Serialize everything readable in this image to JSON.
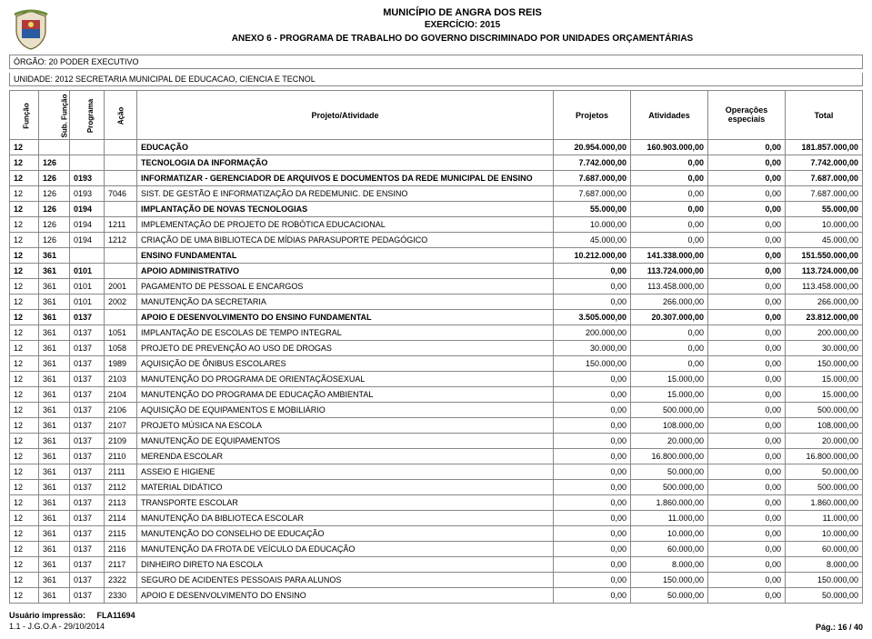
{
  "header": {
    "municipality": "MUNICÍPIO DE ANGRA DOS REIS",
    "exercise": "EXERCÍCIO: 2015",
    "anexo": "ANEXO 6 - PROGRAMA DE TRABALHO DO GOVERNO DISCRIMINADO POR UNIDADES ORÇAMENTÁRIAS",
    "orgao": "ÓRGÃO: 20 PODER EXECUTIVO",
    "unidade": "UNIDADE: 2012 SECRETARIA MUNICIPAL DE EDUCACAO, CIENCIA E TECNOL"
  },
  "columns": {
    "funcao": "Função",
    "subfuncao": "Sub. Função",
    "programa": "Programa",
    "acao": "Ação",
    "projeto_atividade": "Projeto/Atividade",
    "projetos": "Projetos",
    "atividades": "Atividades",
    "operacoes": "Operações especiais",
    "total": "Total"
  },
  "rows": [
    {
      "bold": true,
      "f": "12",
      "s": "",
      "p": "",
      "a": "",
      "desc": "EDUCAÇÃO",
      "v1": "20.954.000,00",
      "v2": "160.903.000,00",
      "v3": "0,00",
      "v4": "181.857.000,00"
    },
    {
      "bold": true,
      "f": "12",
      "s": "126",
      "p": "",
      "a": "",
      "desc": "TECNOLOGIA DA INFORMAÇÃO",
      "v1": "7.742.000,00",
      "v2": "0,00",
      "v3": "0,00",
      "v4": "7.742.000,00"
    },
    {
      "bold": true,
      "f": "12",
      "s": "126",
      "p": "0193",
      "a": "",
      "desc": "INFORMATIZAR - GERENCIADOR DE ARQUIVOS E DOCUMENTOS DA REDE MUNICIPAL DE ENSINO",
      "v1": "7.687.000,00",
      "v2": "0,00",
      "v3": "0,00",
      "v4": "7.687.000,00"
    },
    {
      "bold": false,
      "f": "12",
      "s": "126",
      "p": "0193",
      "a": "7046",
      "desc": "SIST. DE GESTÃO E INFORMATIZAÇÃO DA REDEMUNIC. DE ENSINO",
      "v1": "7.687.000,00",
      "v2": "0,00",
      "v3": "0,00",
      "v4": "7.687.000,00"
    },
    {
      "bold": true,
      "f": "12",
      "s": "126",
      "p": "0194",
      "a": "",
      "desc": "IMPLANTAÇÃO DE NOVAS TECNOLOGIAS",
      "v1": "55.000,00",
      "v2": "0,00",
      "v3": "0,00",
      "v4": "55.000,00"
    },
    {
      "bold": false,
      "f": "12",
      "s": "126",
      "p": "0194",
      "a": "1211",
      "desc": "IMPLEMENTAÇÃO DE PROJETO DE ROBÓTICA EDUCACIONAL",
      "v1": "10.000,00",
      "v2": "0,00",
      "v3": "0,00",
      "v4": "10.000,00"
    },
    {
      "bold": false,
      "f": "12",
      "s": "126",
      "p": "0194",
      "a": "1212",
      "desc": "CRIAÇÃO DE UMA BIBLIOTECA DE MÍDIAS PARASUPORTE PEDAGÓGICO",
      "v1": "45.000,00",
      "v2": "0,00",
      "v3": "0,00",
      "v4": "45.000,00"
    },
    {
      "bold": true,
      "f": "12",
      "s": "361",
      "p": "",
      "a": "",
      "desc": "ENSINO FUNDAMENTAL",
      "v1": "10.212.000,00",
      "v2": "141.338.000,00",
      "v3": "0,00",
      "v4": "151.550.000,00"
    },
    {
      "bold": true,
      "f": "12",
      "s": "361",
      "p": "0101",
      "a": "",
      "desc": "APOIO ADMINISTRATIVO",
      "v1": "0,00",
      "v2": "113.724.000,00",
      "v3": "0,00",
      "v4": "113.724.000,00"
    },
    {
      "bold": false,
      "f": "12",
      "s": "361",
      "p": "0101",
      "a": "2001",
      "desc": "PAGAMENTO DE PESSOAL E ENCARGOS",
      "v1": "0,00",
      "v2": "113.458.000,00",
      "v3": "0,00",
      "v4": "113.458.000,00"
    },
    {
      "bold": false,
      "f": "12",
      "s": "361",
      "p": "0101",
      "a": "2002",
      "desc": "MANUTENÇÃO DA SECRETARIA",
      "v1": "0,00",
      "v2": "266.000,00",
      "v3": "0,00",
      "v4": "266.000,00"
    },
    {
      "bold": true,
      "f": "12",
      "s": "361",
      "p": "0137",
      "a": "",
      "desc": "APOIO E DESENVOLVIMENTO DO ENSINO FUNDAMENTAL",
      "v1": "3.505.000,00",
      "v2": "20.307.000,00",
      "v3": "0,00",
      "v4": "23.812.000,00"
    },
    {
      "bold": false,
      "f": "12",
      "s": "361",
      "p": "0137",
      "a": "1051",
      "desc": "IMPLANTAÇÃO DE ESCOLAS DE TEMPO INTEGRAL",
      "v1": "200.000,00",
      "v2": "0,00",
      "v3": "0,00",
      "v4": "200.000,00"
    },
    {
      "bold": false,
      "f": "12",
      "s": "361",
      "p": "0137",
      "a": "1058",
      "desc": "PROJETO DE PREVENÇÃO AO USO DE DROGAS",
      "v1": "30.000,00",
      "v2": "0,00",
      "v3": "0,00",
      "v4": "30.000,00"
    },
    {
      "bold": false,
      "f": "12",
      "s": "361",
      "p": "0137",
      "a": "1989",
      "desc": "AQUISIÇÃO DE ÔNIBUS ESCOLARES",
      "v1": "150.000,00",
      "v2": "0,00",
      "v3": "0,00",
      "v4": "150.000,00"
    },
    {
      "bold": false,
      "f": "12",
      "s": "361",
      "p": "0137",
      "a": "2103",
      "desc": "MANUTENÇÃO DO PROGRAMA DE ORIENTAÇÃOSEXUAL",
      "v1": "0,00",
      "v2": "15.000,00",
      "v3": "0,00",
      "v4": "15.000,00"
    },
    {
      "bold": false,
      "f": "12",
      "s": "361",
      "p": "0137",
      "a": "2104",
      "desc": "MANUTENÇÃO DO PROGRAMA DE EDUCAÇÃO AMBIENTAL",
      "v1": "0,00",
      "v2": "15.000,00",
      "v3": "0,00",
      "v4": "15.000,00"
    },
    {
      "bold": false,
      "f": "12",
      "s": "361",
      "p": "0137",
      "a": "2106",
      "desc": "AQUISIÇÃO DE EQUIPAMENTOS E MOBILIÁRIO",
      "v1": "0,00",
      "v2": "500.000,00",
      "v3": "0,00",
      "v4": "500.000,00"
    },
    {
      "bold": false,
      "f": "12",
      "s": "361",
      "p": "0137",
      "a": "2107",
      "desc": "PROJETO MÚSICA NA ESCOLA",
      "v1": "0,00",
      "v2": "108.000,00",
      "v3": "0,00",
      "v4": "108.000,00"
    },
    {
      "bold": false,
      "f": "12",
      "s": "361",
      "p": "0137",
      "a": "2109",
      "desc": "MANUTENÇÃO DE EQUIPAMENTOS",
      "v1": "0,00",
      "v2": "20.000,00",
      "v3": "0,00",
      "v4": "20.000,00"
    },
    {
      "bold": false,
      "f": "12",
      "s": "361",
      "p": "0137",
      "a": "2110",
      "desc": "MERENDA ESCOLAR",
      "v1": "0,00",
      "v2": "16.800.000,00",
      "v3": "0,00",
      "v4": "16.800.000,00"
    },
    {
      "bold": false,
      "f": "12",
      "s": "361",
      "p": "0137",
      "a": "2111",
      "desc": "ASSEIO E HIGIENE",
      "v1": "0,00",
      "v2": "50.000,00",
      "v3": "0,00",
      "v4": "50.000,00"
    },
    {
      "bold": false,
      "f": "12",
      "s": "361",
      "p": "0137",
      "a": "2112",
      "desc": "MATERIAL DIDÁTICO",
      "v1": "0,00",
      "v2": "500.000,00",
      "v3": "0,00",
      "v4": "500.000,00"
    },
    {
      "bold": false,
      "f": "12",
      "s": "361",
      "p": "0137",
      "a": "2113",
      "desc": "TRANSPORTE ESCOLAR",
      "v1": "0,00",
      "v2": "1.860.000,00",
      "v3": "0,00",
      "v4": "1.860.000,00"
    },
    {
      "bold": false,
      "f": "12",
      "s": "361",
      "p": "0137",
      "a": "2114",
      "desc": "MANUTENÇÃO DA BIBLIOTECA ESCOLAR",
      "v1": "0,00",
      "v2": "11.000,00",
      "v3": "0,00",
      "v4": "11.000,00"
    },
    {
      "bold": false,
      "f": "12",
      "s": "361",
      "p": "0137",
      "a": "2115",
      "desc": "MANUTENÇÃO DO CONSELHO DE EDUCAÇÃO",
      "v1": "0,00",
      "v2": "10.000,00",
      "v3": "0,00",
      "v4": "10.000,00"
    },
    {
      "bold": false,
      "f": "12",
      "s": "361",
      "p": "0137",
      "a": "2116",
      "desc": "MANUTENÇÃO DA FROTA DE VEÍCULO DA EDUCAÇÃO",
      "v1": "0,00",
      "v2": "60.000,00",
      "v3": "0,00",
      "v4": "60.000,00"
    },
    {
      "bold": false,
      "f": "12",
      "s": "361",
      "p": "0137",
      "a": "2117",
      "desc": "DINHEIRO DIRETO NA ESCOLA",
      "v1": "0,00",
      "v2": "8.000,00",
      "v3": "0,00",
      "v4": "8.000,00"
    },
    {
      "bold": false,
      "f": "12",
      "s": "361",
      "p": "0137",
      "a": "2322",
      "desc": "SEGURO DE ACIDENTES PESSOAIS PARA ALUNOS",
      "v1": "0,00",
      "v2": "150.000,00",
      "v3": "0,00",
      "v4": "150.000,00"
    },
    {
      "bold": false,
      "f": "12",
      "s": "361",
      "p": "0137",
      "a": "2330",
      "desc": "APOIO E DESENVOLVIMENTO DO ENSINO",
      "v1": "0,00",
      "v2": "50.000,00",
      "v3": "0,00",
      "v4": "50.000,00"
    }
  ],
  "footer": {
    "user_label": "Usuário impressão:",
    "user": "FLA11694",
    "ref": "1.1 - J.G.O.A - 29/10/2014",
    "page": "Pág.: 16 / 40"
  },
  "style": {
    "border_color": "#888888",
    "font_size_body": 9,
    "font_size_header": 11
  }
}
